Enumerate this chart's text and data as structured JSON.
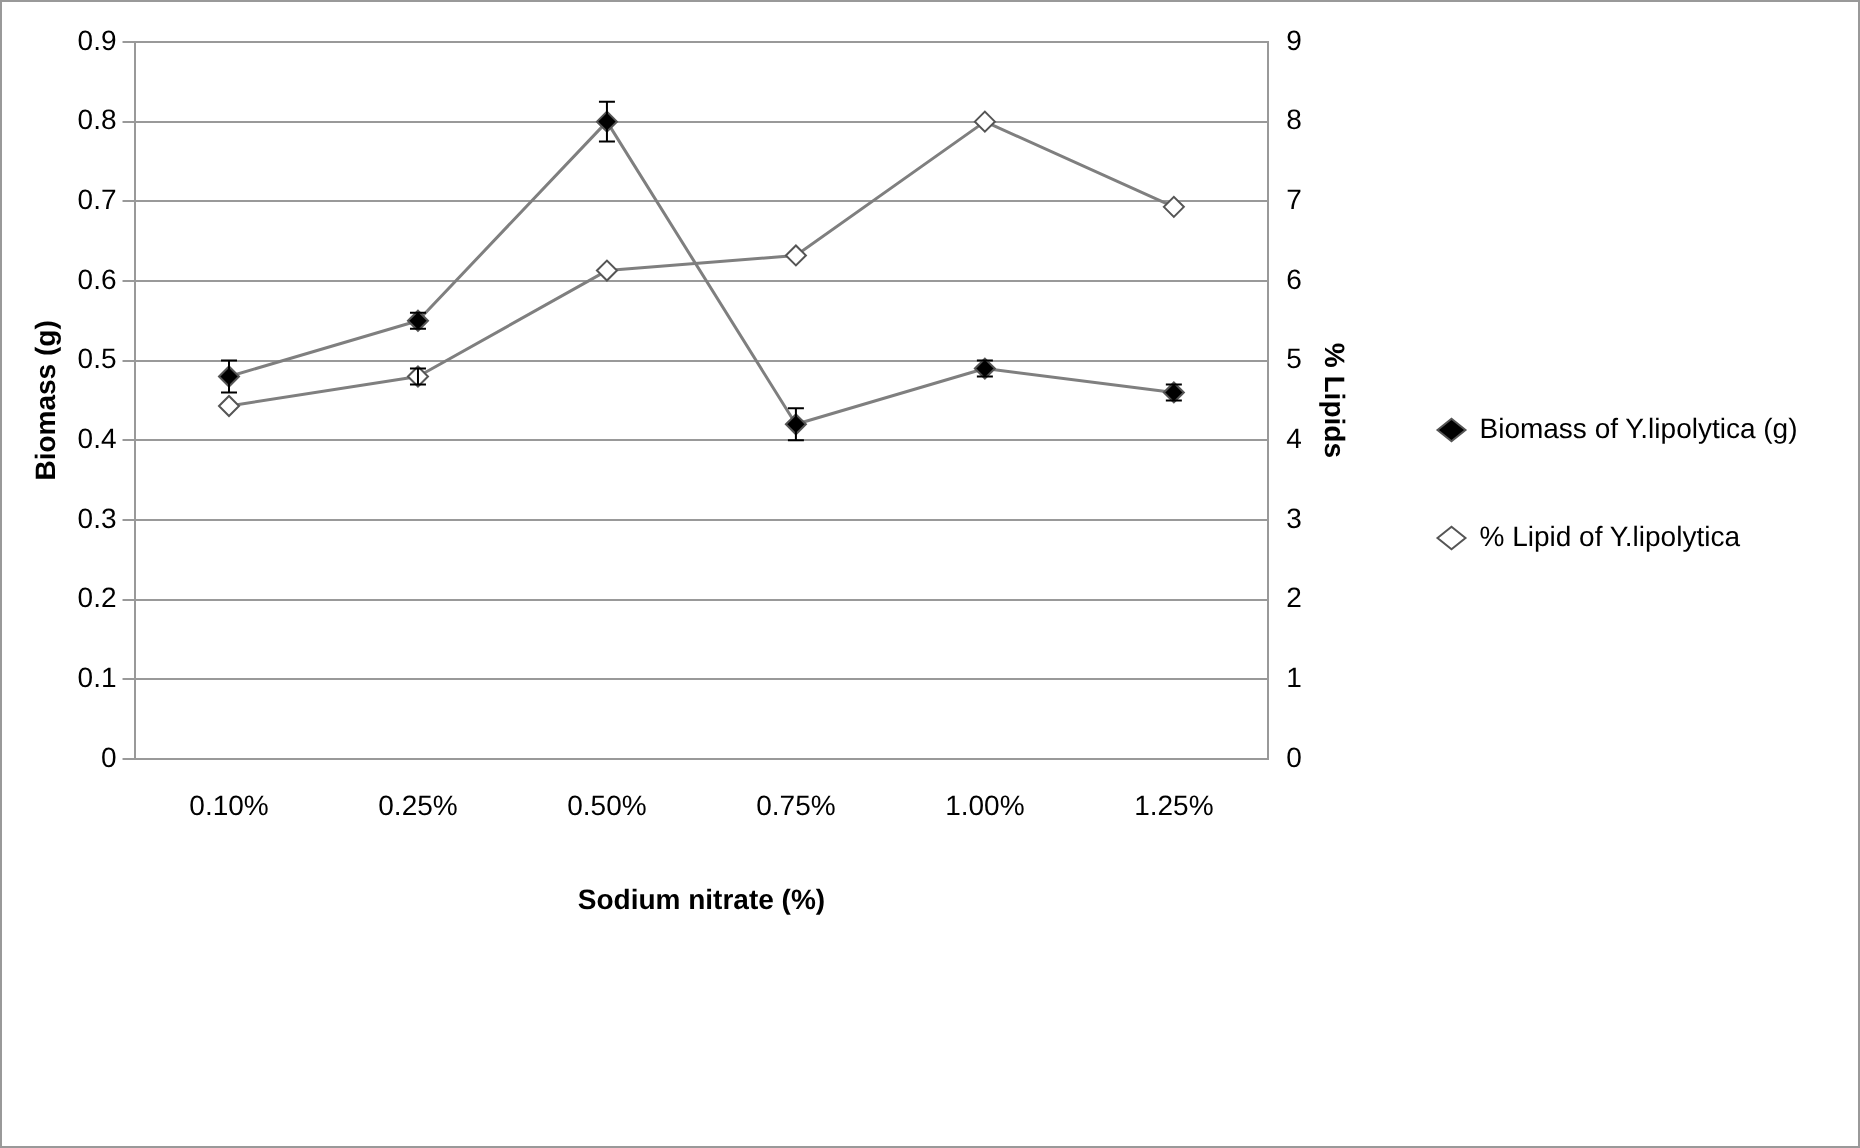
{
  "chart_data": {
    "type": "line",
    "xlabel": "Sodium nitrate (%)",
    "ylabel": "Biomass (g)",
    "y2label": "% Lipids",
    "categories": [
      "0.10%",
      "0.25%",
      "0.50%",
      "0.75%",
      "1.00%",
      "1.25%"
    ],
    "series": [
      {
        "name": "Biomass of Y.lipolytica (g)",
        "color": "#000000",
        "values": [
          0.48,
          0.55,
          0.8,
          0.42,
          0.49,
          0.46
        ],
        "errors": [
          0.02,
          0.01,
          0.025,
          0.02,
          0.01,
          0.01
        ]
      },
      {
        "name": "% Lipid of Y.lipolytica",
        "color": "#ffffff",
        "axis": "y2",
        "values": [
          4.43,
          4.8,
          6.13,
          6.32,
          8.0,
          6.93
        ],
        "errors": [
          null,
          0.1,
          null,
          null,
          null,
          null
        ]
      }
    ],
    "ylim": [
      0,
      0.9
    ],
    "yticks": [
      0,
      0.1,
      0.2,
      0.3,
      0.4,
      0.5,
      0.6,
      0.7,
      0.8,
      0.9
    ],
    "y2lim": [
      0,
      9
    ],
    "y2ticks": [
      0,
      1,
      2,
      3,
      4,
      5,
      6,
      7,
      8,
      9
    ],
    "grid": "y",
    "legend": "right",
    "marker": "diamond",
    "line_style": "solid"
  }
}
